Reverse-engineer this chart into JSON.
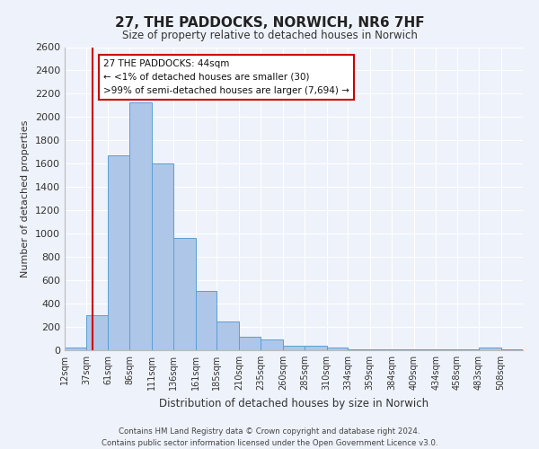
{
  "title": "27, THE PADDOCKS, NORWICH, NR6 7HF",
  "subtitle": "Size of property relative to detached houses in Norwich",
  "xlabel": "Distribution of detached houses by size in Norwich",
  "ylabel": "Number of detached properties",
  "bin_labels": [
    "12sqm",
    "37sqm",
    "61sqm",
    "86sqm",
    "111sqm",
    "136sqm",
    "161sqm",
    "185sqm",
    "210sqm",
    "235sqm",
    "260sqm",
    "285sqm",
    "310sqm",
    "334sqm",
    "359sqm",
    "384sqm",
    "409sqm",
    "434sqm",
    "458sqm",
    "483sqm",
    "508sqm"
  ],
  "bar_heights": [
    20,
    300,
    1670,
    2130,
    1600,
    960,
    510,
    250,
    115,
    95,
    35,
    35,
    20,
    10,
    10,
    5,
    5,
    5,
    5,
    20,
    5
  ],
  "bar_color": "#aec6e8",
  "bar_edge_color": "#5a9fd4",
  "vline_x": 44,
  "vline_color": "#cc0000",
  "ylim": [
    0,
    2600
  ],
  "yticks": [
    0,
    200,
    400,
    600,
    800,
    1000,
    1200,
    1400,
    1600,
    1800,
    2000,
    2200,
    2400,
    2600
  ],
  "annotation_title": "27 THE PADDOCKS: 44sqm",
  "annotation_line1": "← <1% of detached houses are smaller (30)",
  "annotation_line2": ">99% of semi-detached houses are larger (7,694) →",
  "annotation_box_color": "#ffffff",
  "annotation_box_edge": "#cc0000",
  "footer1": "Contains HM Land Registry data © Crown copyright and database right 2024.",
  "footer2": "Contains public sector information licensed under the Open Government Licence v3.0.",
  "bg_color": "#eef2fa",
  "grid_color": "#ffffff",
  "bin_starts": [
    12,
    37,
    61,
    86,
    111,
    136,
    161,
    185,
    210,
    235,
    260,
    285,
    310,
    334,
    359,
    384,
    409,
    434,
    458,
    483,
    508
  ]
}
